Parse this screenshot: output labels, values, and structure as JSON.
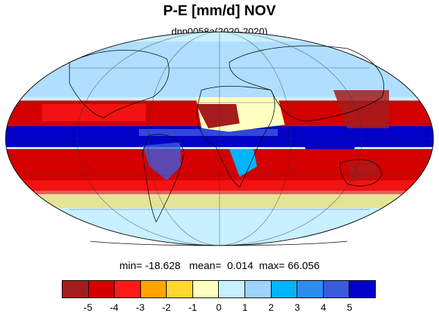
{
  "title": "P-E [mm/d] NOV",
  "subtitle": "dpp0058a(2020-2020)",
  "stats": {
    "min_label": "min=",
    "min": "-18.628",
    "mean_label": "mean=",
    "mean": "0.014",
    "max_label": "max=",
    "max": "66.056"
  },
  "map": {
    "projection": "mollweide",
    "variable": "P-E",
    "units": "mm/d",
    "land_outline_color": "#000000",
    "gridlines": true
  },
  "colorbar": {
    "colors": [
      "#a51c1c",
      "#d40000",
      "#ff1a1a",
      "#ffa500",
      "#ffd830",
      "#ffffc0",
      "#c8f0ff",
      "#9ed2ff",
      "#00b4ff",
      "#2e8cf0",
      "#3c5adc",
      "#0000c8"
    ],
    "tick_labels": [
      "-5",
      "-4",
      "-3",
      "-2",
      "-1",
      "0",
      "1",
      "2",
      "3",
      "4",
      "5"
    ]
  }
}
